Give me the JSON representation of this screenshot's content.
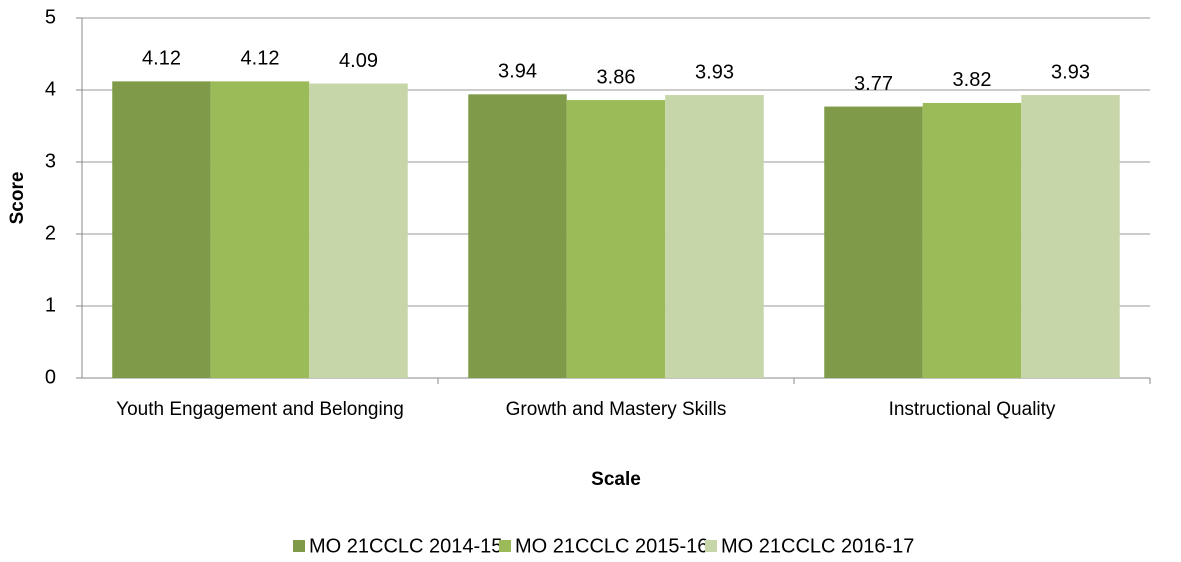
{
  "chart_data": {
    "type": "bar",
    "xlabel": "Scale",
    "ylabel": "Score",
    "categories": [
      "Youth Engagement and Belonging",
      "Growth and Mastery Skills",
      "Instructional Quality"
    ],
    "series": [
      {
        "name": "MO 21CCLC 2014-15",
        "color": "#7f9b49",
        "values": [
          4.12,
          3.94,
          3.77
        ]
      },
      {
        "name": "MO 21CCLC 2015-16",
        "color": "#9bbb59",
        "values": [
          4.12,
          3.86,
          3.82
        ]
      },
      {
        "name": "MO 21CCLC 2016-17",
        "color": "#c6d6a9",
        "values": [
          4.09,
          3.93,
          3.93
        ]
      }
    ],
    "ylim": [
      0,
      5
    ],
    "yticks": [
      0,
      1,
      2,
      3,
      4,
      5
    ],
    "grid": true,
    "legend": "bottom"
  }
}
